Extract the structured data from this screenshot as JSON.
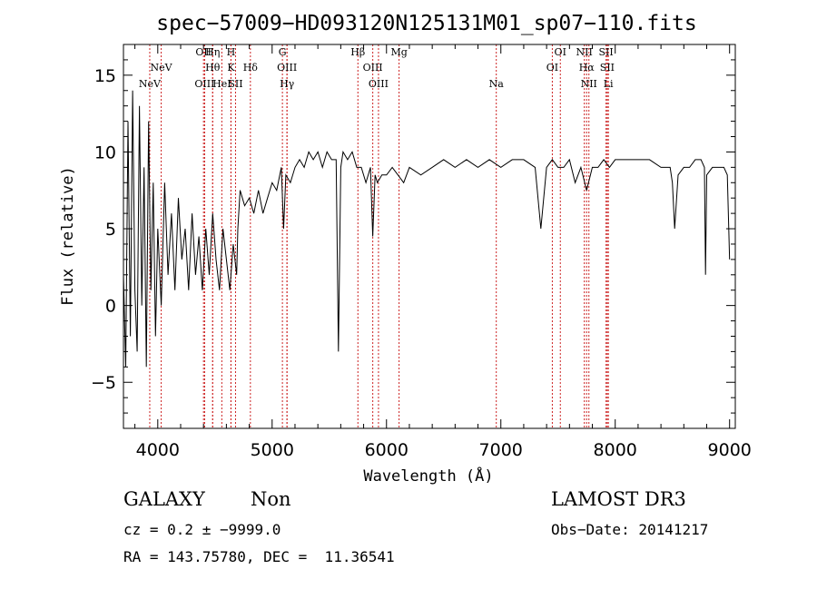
{
  "chart_data": {
    "type": "line",
    "title": "spec−57009−HD093120N125131M01_sp07−110.fits",
    "xlabel": "Wavelength (Å)",
    "ylabel": "Flux (relative)",
    "xlim": [
      3700,
      9050
    ],
    "ylim": [
      -8,
      17
    ],
    "xticks": [
      4000,
      5000,
      6000,
      7000,
      8000,
      9000
    ],
    "yticks": [
      -5,
      0,
      5,
      10,
      15
    ],
    "xtick_labels": [
      "4000",
      "5000",
      "6000",
      "7000",
      "8000",
      "9000"
    ],
    "ytick_labels": [
      "−5",
      "0",
      "5",
      "10",
      "15"
    ],
    "grid": false,
    "series": [
      {
        "name": "flux",
        "x": [
          3700,
          3720,
          3740,
          3760,
          3780,
          3800,
          3820,
          3840,
          3860,
          3880,
          3900,
          3920,
          3940,
          3960,
          3980,
          4000,
          4030,
          4060,
          4090,
          4120,
          4150,
          4180,
          4210,
          4240,
          4270,
          4300,
          4330,
          4360,
          4390,
          4420,
          4450,
          4480,
          4510,
          4540,
          4570,
          4600,
          4630,
          4660,
          4690,
          4700,
          4720,
          4760,
          4800,
          4840,
          4880,
          4920,
          4960,
          5000,
          5040,
          5080,
          5100,
          5120,
          5160,
          5200,
          5240,
          5280,
          5320,
          5360,
          5400,
          5440,
          5480,
          5520,
          5560,
          5580,
          5600,
          5620,
          5660,
          5700,
          5740,
          5780,
          5820,
          5860,
          5880,
          5900,
          5920,
          5960,
          6000,
          6050,
          6100,
          6150,
          6200,
          6300,
          6400,
          6500,
          6600,
          6700,
          6800,
          6900,
          7000,
          7100,
          7200,
          7300,
          7350,
          7400,
          7450,
          7500,
          7550,
          7600,
          7650,
          7700,
          7750,
          7800,
          7850,
          7900,
          7950,
          8000,
          8100,
          8200,
          8300,
          8400,
          8480,
          8500,
          8520,
          8550,
          8600,
          8650,
          8700,
          8750,
          8780,
          8790,
          8800,
          8850,
          8900,
          8950,
          8980,
          9000
        ],
        "values": [
          2,
          -4,
          12,
          -2,
          14,
          1,
          -3,
          13,
          0,
          9,
          -4,
          12,
          1,
          8,
          -2,
          5,
          0,
          8,
          2,
          6,
          1,
          7,
          3,
          5,
          1,
          6,
          2,
          4.5,
          1,
          5,
          2,
          6,
          3,
          1,
          5,
          3,
          1,
          4,
          2,
          5,
          7.5,
          6.5,
          7,
          6,
          7.5,
          6,
          7,
          8,
          7.5,
          9,
          5,
          8.5,
          8,
          9,
          9.5,
          9,
          10,
          9.5,
          10,
          9,
          10,
          9.5,
          9.5,
          -3,
          9,
          10,
          9.5,
          10,
          9,
          9,
          8,
          9,
          4.5,
          8.5,
          8,
          8.5,
          8.5,
          9,
          8.5,
          8,
          9,
          8.5,
          9,
          9.5,
          9,
          9.5,
          9,
          9.5,
          9,
          9.5,
          9.5,
          9,
          5,
          9,
          9.5,
          9,
          9,
          9.5,
          8,
          9,
          7.5,
          9,
          9,
          9.5,
          9,
          9.5,
          9.5,
          9.5,
          9.5,
          9,
          9,
          8,
          5,
          8.5,
          9,
          9,
          9.5,
          9.5,
          9,
          2,
          8.5,
          9,
          9,
          9,
          8.5,
          3
        ],
        "color": "#000000"
      }
    ],
    "reference_lines": [
      {
        "label": "NeV",
        "x": 3930,
        "row": 3
      },
      {
        "label": "NeV",
        "x": 4030,
        "row": 2
      },
      {
        "label": "OII",
        "x": 4400,
        "row": 1
      },
      {
        "label": "OIII",
        "x": 4410,
        "row": 3
      },
      {
        "label": "Hη",
        "x": 4480,
        "row": 1
      },
      {
        "label": "Hθ",
        "x": 4480,
        "row": 2
      },
      {
        "label": "HeI",
        "x": 4560,
        "row": 3
      },
      {
        "label": "H",
        "x": 4640,
        "row": 1
      },
      {
        "label": "K",
        "x": 4640,
        "row": 2
      },
      {
        "label": "SII",
        "x": 4680,
        "row": 3
      },
      {
        "label": "Hδ",
        "x": 4810,
        "row": 2
      },
      {
        "label": "G",
        "x": 5090,
        "row": 1
      },
      {
        "label": "OIII",
        "x": 5130,
        "row": 2
      },
      {
        "label": "Hγ",
        "x": 5130,
        "row": 3
      },
      {
        "label": "Hβ",
        "x": 5750,
        "row": 1
      },
      {
        "label": "OIII",
        "x": 5880,
        "row": 2
      },
      {
        "label": "OIII",
        "x": 5930,
        "row": 3
      },
      {
        "label": "Mg",
        "x": 6110,
        "row": 1
      },
      {
        "label": "Na",
        "x": 6960,
        "row": 3
      },
      {
        "label": "OI",
        "x": 7450,
        "row": 2
      },
      {
        "label": "OI",
        "x": 7520,
        "row": 1
      },
      {
        "label": "NII",
        "x": 7730,
        "row": 1
      },
      {
        "label": "Hα",
        "x": 7750,
        "row": 2
      },
      {
        "label": "NII",
        "x": 7770,
        "row": 3
      },
      {
        "label": "SII",
        "x": 7920,
        "row": 1
      },
      {
        "label": "SII",
        "x": 7930,
        "row": 2
      },
      {
        "label": "Li",
        "x": 7940,
        "row": 3
      }
    ]
  },
  "info": {
    "class": "GALAXY",
    "subclass": "Non",
    "survey": "LAMOST DR3",
    "cz": "cz = 0.2 ± −9999.0",
    "obs_date": "Obs−Date: 20141217",
    "radec": "RA = 143.75780, DEC =  11.36541"
  }
}
